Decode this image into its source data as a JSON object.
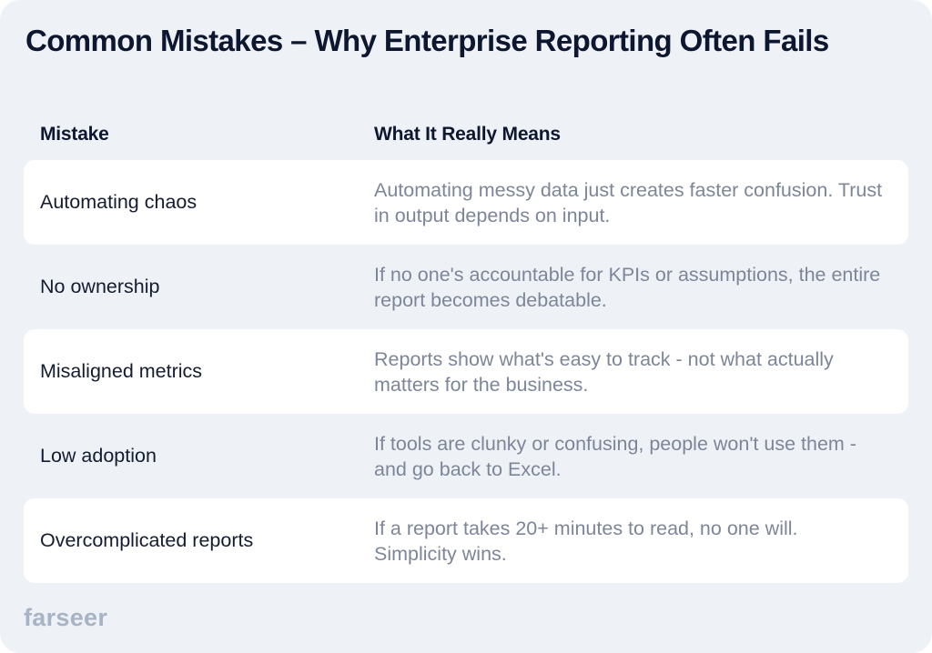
{
  "title": "Common Mistakes – Why Enterprise Reporting Often Fails",
  "table": {
    "headers": {
      "mistake": "Mistake",
      "meaning": "What It Really Means"
    },
    "rows": [
      {
        "mistake": "Automating chaos",
        "meaning": "Automating messy data just creates faster confusion. Trust in output depends on input."
      },
      {
        "mistake": "No ownership",
        "meaning": "If no one's accountable for KPIs or assumptions, the entire report becomes debatable."
      },
      {
        "mistake": "Misaligned metrics",
        "meaning": "Reports show what's easy to track - not what actually matters for the business."
      },
      {
        "mistake": "Low adoption",
        "meaning": "If tools are clunky or confusing, people won't use them - and go back to Excel."
      },
      {
        "mistake": "Overcomplicated reports",
        "meaning": "If a report takes 20+ minutes to read, no one will. Simplicity wins."
      }
    ]
  },
  "brand": {
    "logo_text": "farseer",
    "colors": {
      "background": "#eef1f6",
      "row_highlight": "#ffffff",
      "heading": "#0d1730",
      "body_text": "#141c30",
      "muted_text": "#7d8699",
      "logo": "#a7b4c6"
    }
  }
}
